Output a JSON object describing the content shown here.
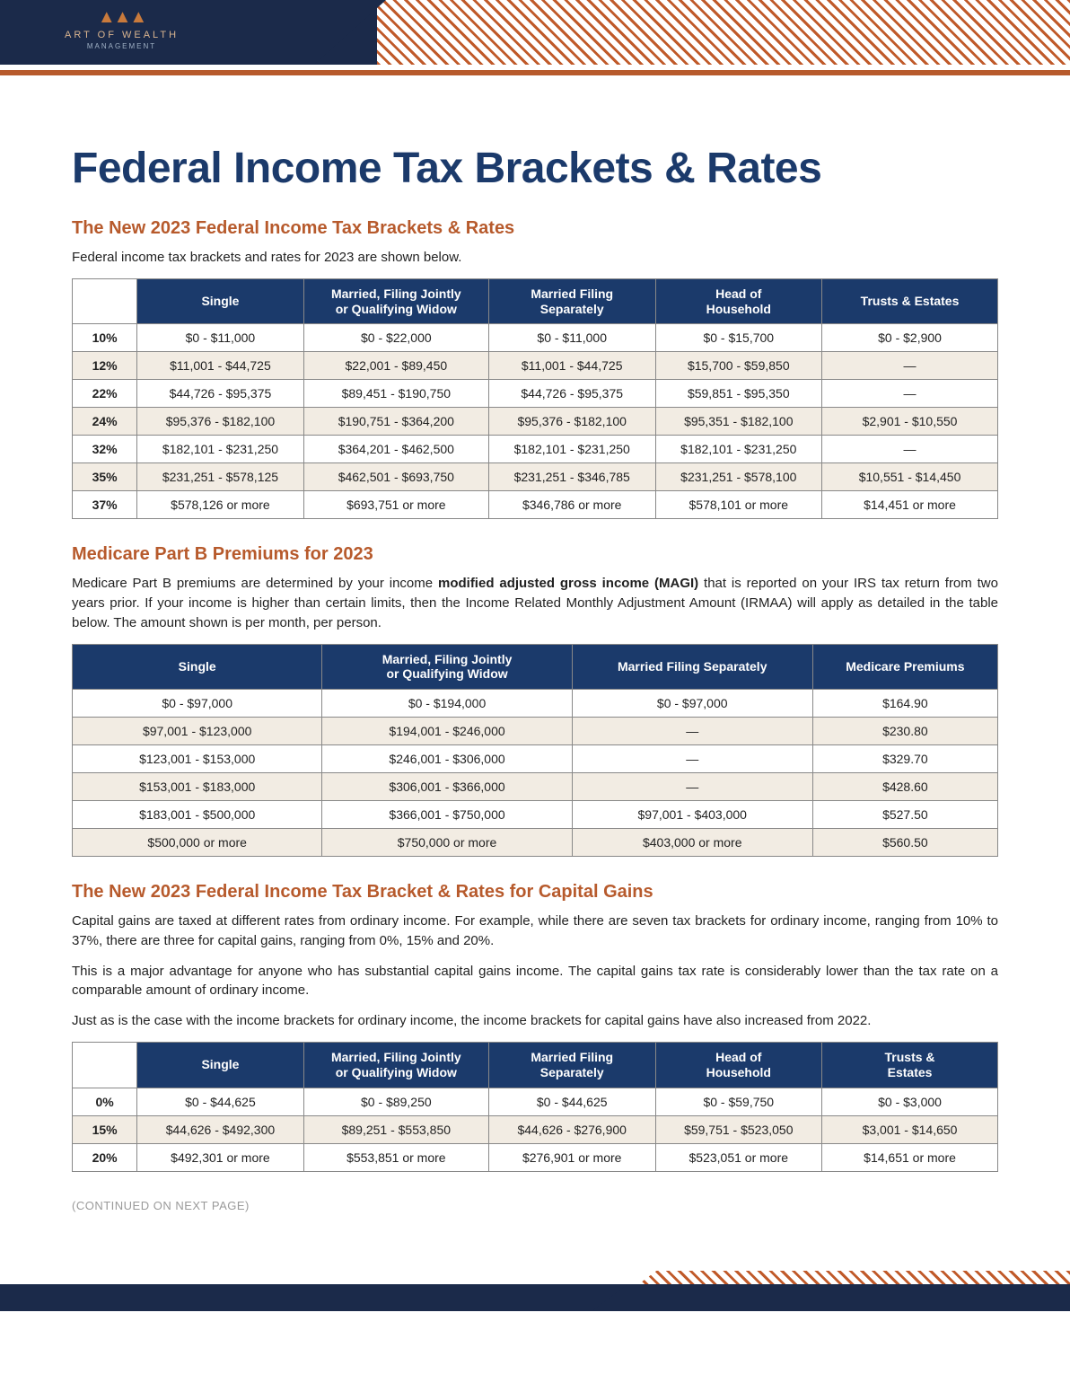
{
  "brand": {
    "name": "ART OF WEALTH",
    "sub": "MANAGEMENT",
    "mark": "▲▲▲"
  },
  "colors": {
    "navy": "#1b3a6b",
    "rust": "#b75a2c",
    "header_navy": "#1b2a4a",
    "shade_row": "#f2ece3",
    "border": "#888888",
    "text": "#222222",
    "footer_note": "#9a9a9a",
    "white": "#ffffff"
  },
  "page": {
    "title": "Federal Income Tax Brackets & Rates",
    "footer_note": "(CONTINUED ON NEXT PAGE)"
  },
  "section1": {
    "title": "The New 2023 Federal Income Tax Brackets & Rates",
    "intro": "Federal income tax brackets and rates for 2023 are shown below.",
    "columns": [
      "",
      "Single",
      "Married, Filing Jointly or Qualifying Widow",
      "Married Filing Separately",
      "Head of Household",
      "Trusts & Estates"
    ],
    "rates": [
      "10%",
      "12%",
      "22%",
      "24%",
      "32%",
      "35%",
      "37%"
    ],
    "rows": [
      [
        "$0 - $11,000",
        "$0 - $22,000",
        "$0 - $11,000",
        "$0 - $15,700",
        "$0 - $2,900"
      ],
      [
        "$11,001 - $44,725",
        "$22,001 - $89,450",
        "$11,001 - $44,725",
        "$15,700 - $59,850",
        "—"
      ],
      [
        "$44,726 - $95,375",
        "$89,451 - $190,750",
        "$44,726 - $95,375",
        "$59,851 - $95,350",
        "—"
      ],
      [
        "$95,376 - $182,100",
        "$190,751 - $364,200",
        "$95,376 - $182,100",
        "$95,351 - $182,100",
        "$2,901 - $10,550"
      ],
      [
        "$182,101 - $231,250",
        "$364,201 - $462,500",
        "$182,101 - $231,250",
        "$182,101 - $231,250",
        "—"
      ],
      [
        "$231,251 - $578,125",
        "$462,501 - $693,750",
        "$231,251 - $346,785",
        "$231,251 - $578,100",
        "$10,551 - $14,450"
      ],
      [
        "$578,126 or more",
        "$693,751 or more",
        "$346,786 or more",
        "$578,101 or more",
        "$14,451 or more"
      ]
    ],
    "shaded_rows": [
      1,
      3,
      5
    ],
    "col_widths_pct": [
      7,
      18,
      20,
      18,
      18,
      19
    ]
  },
  "section2": {
    "title": "Medicare Part B Premiums for 2023",
    "intro_prefix": "Medicare Part B premiums are determined by your income ",
    "intro_bold": "modified adjusted gross income (MAGI)",
    "intro_suffix": " that is reported on your IRS tax return from two years prior. If your income is higher than certain limits, then the Income Related Monthly Adjustment Amount (IRMAA) will apply as detailed in the table below.  The amount shown is per month, per person.",
    "columns": [
      "Single",
      "Married, Filing Jointly or Qualifying Widow",
      "Married Filing Separately",
      "Medicare Premiums"
    ],
    "rows": [
      [
        "$0 - $97,000",
        "$0 - $194,000",
        "$0 - $97,000",
        "$164.90"
      ],
      [
        "$97,001 - $123,000",
        "$194,001 - $246,000",
        "—",
        "$230.80"
      ],
      [
        "$123,001 - $153,000",
        "$246,001 - $306,000",
        "—",
        "$329.70"
      ],
      [
        "$153,001 - $183,000",
        "$306,001 - $366,000",
        "—",
        "$428.60"
      ],
      [
        "$183,001 - $500,000",
        "$366,001 - $750,000",
        "$97,001 - $403,000",
        "$527.50"
      ],
      [
        "$500,000 or more",
        "$750,000 or more",
        "$403,000 or more",
        "$560.50"
      ]
    ],
    "shaded_rows": [
      1,
      3,
      5
    ],
    "col_widths_pct": [
      27,
      27,
      26,
      20
    ]
  },
  "section3": {
    "title": "The New 2023 Federal Income Tax Bracket & Rates for Capital Gains",
    "para1": "Capital gains are taxed at different rates from ordinary income. For example, while there are seven tax brackets for ordinary income, ranging from 10% to 37%, there are three for capital gains, ranging from 0%, 15% and 20%.",
    "para2": "This is a major advantage for anyone who has substantial capital gains income. The capital gains tax rate is considerably lower than the tax rate on a comparable amount of ordinary income.",
    "para3": "Just as is the case with the income brackets for ordinary income, the income brackets for capital gains have also increased from 2022.",
    "columns": [
      "",
      "Single",
      "Married, Filing Jointly or Qualifying Widow",
      "Married Filing Separately",
      "Head of Household",
      "Trusts & Estates"
    ],
    "rates": [
      "0%",
      "15%",
      "20%"
    ],
    "rows": [
      [
        "$0 - $44,625",
        "$0 - $89,250",
        "$0 - $44,625",
        "$0 - $59,750",
        "$0 - $3,000"
      ],
      [
        "$44,626 - $492,300",
        "$89,251 - $553,850",
        "$44,626 - $276,900",
        "$59,751 - $523,050",
        "$3,001 - $14,650"
      ],
      [
        "$492,301 or more",
        "$553,851 or more",
        "$276,901 or more",
        "$523,051 or more",
        "$14,651 or more"
      ]
    ],
    "shaded_rows": [
      1
    ],
    "col_widths_pct": [
      7,
      18,
      20,
      18,
      18,
      19
    ]
  }
}
